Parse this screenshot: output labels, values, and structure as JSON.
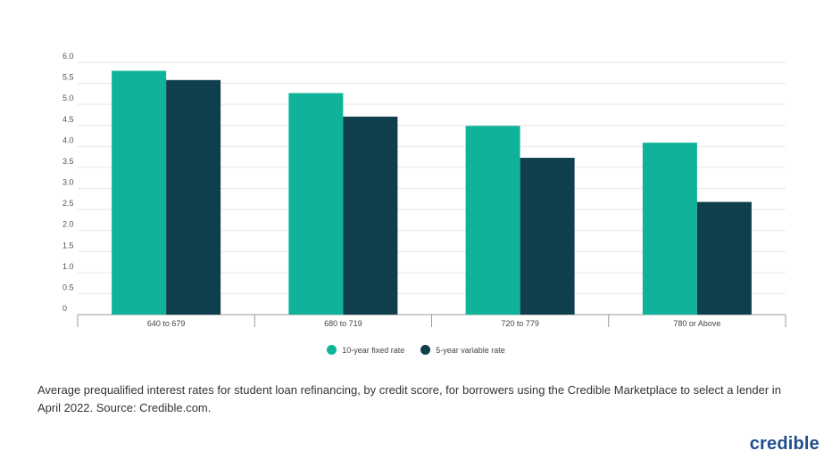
{
  "chart_data": {
    "type": "bar",
    "categories": [
      "640 to 679",
      "680 to 719",
      "720 to 779",
      "780 or Above"
    ],
    "series": [
      {
        "name": "10-year fixed rate",
        "color": "#10b39a",
        "values": [
          5.8,
          5.27,
          4.49,
          4.09
        ]
      },
      {
        "name": "5-year variable rate",
        "color": "#0f3f4c",
        "values": [
          5.58,
          4.71,
          3.73,
          2.68
        ]
      }
    ],
    "yticks": [
      "0",
      "0.5",
      "1.0",
      "1.5",
      "2.0",
      "2.5",
      "3.0",
      "3.5",
      "4.0",
      "4.5",
      "5.0",
      "5.5",
      "6.0"
    ],
    "ylim": [
      0,
      6
    ],
    "grid": true,
    "legend": "bottom"
  },
  "caption": "Average prequalified interest rates for student loan refinancing, by credit score, for borrowers using the Credible Marketplace to select a lender in April 2022. Source: Credible.com.",
  "logo": "credible"
}
